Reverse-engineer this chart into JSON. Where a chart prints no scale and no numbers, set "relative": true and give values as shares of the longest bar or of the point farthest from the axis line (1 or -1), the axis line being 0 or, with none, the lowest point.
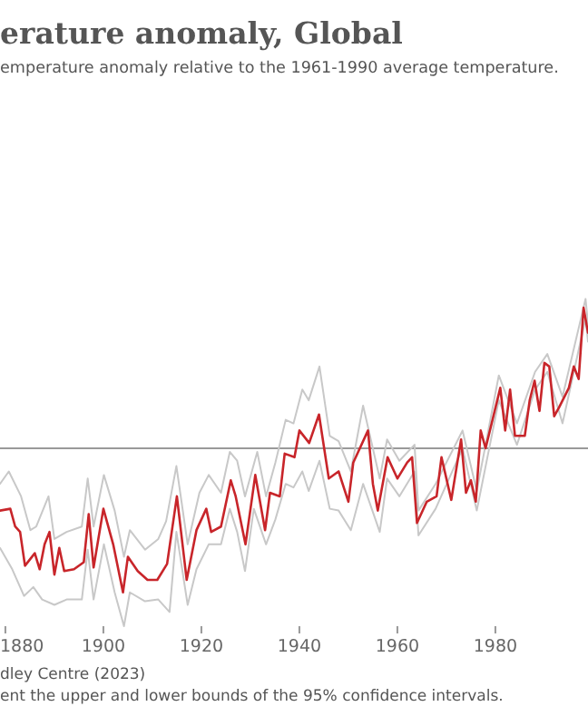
{
  "chart_data": {
    "type": "line",
    "title": "erature anomaly, Global",
    "subtitle": "emperature anomaly relative to the 1961-1990 average temperature.",
    "annotations": [
      "dley Centre (2023)",
      "ent the upper and lower bounds of the 95% confidence intervals."
    ],
    "relative": true,
    "tick_labels": "x",
    "xlim": [
      1878.9,
      1998.9
    ],
    "xticks": [
      1880,
      1900,
      1920,
      1940,
      1960,
      1980
    ],
    "series": [
      {
        "color": "#c8c8c8",
        "x": [
          1878.9,
          1880.7,
          1883.2,
          1885.1,
          1886.3,
          1888.8,
          1890.0,
          1892.5,
          1895.6,
          1896.8,
          1898.0,
          1900.1,
          1902.3,
          1904.2,
          1905.4,
          1908.5,
          1911.2,
          1912.8,
          1914.9,
          1917.2,
          1919.6,
          1921.5,
          1924.0,
          1925.8,
          1927.3,
          1928.9,
          1931.4,
          1933.2,
          1935.1,
          1937.2,
          1938.8,
          1940.6,
          1941.9,
          1944.1,
          1946.2,
          1948.0,
          1950.5,
          1953.0,
          1956.4,
          1957.9,
          1960.4,
          1963.5,
          1964.3,
          1967.8,
          1973.3,
          1976.2,
          1980.7,
          1984.4,
          1988.1,
          1990.6,
          1993.7,
          1998.4,
          1998.9
        ],
        "values": [
          -0.2,
          -0.13,
          -0.27,
          -0.46,
          -0.44,
          -0.27,
          -0.51,
          -0.47,
          -0.44,
          -0.17,
          -0.44,
          -0.15,
          -0.35,
          -0.61,
          -0.46,
          -0.57,
          -0.51,
          -0.41,
          -0.1,
          -0.54,
          -0.25,
          -0.15,
          -0.25,
          -0.02,
          -0.07,
          -0.27,
          -0.02,
          -0.27,
          -0.08,
          0.16,
          0.14,
          0.33,
          0.27,
          0.46,
          0.07,
          0.04,
          -0.13,
          0.24,
          -0.17,
          0.05,
          -0.07,
          0.02,
          -0.35,
          -0.2,
          0.1,
          -0.24,
          0.41,
          0.14,
          0.43,
          0.53,
          0.29,
          0.84,
          0.7
        ]
      },
      {
        "color": "#c8c8c8",
        "x": [
          1878.9,
          1881.4,
          1883.8,
          1885.7,
          1887.5,
          1890.0,
          1892.5,
          1895.6,
          1896.8,
          1898.0,
          1900.1,
          1902.3,
          1904.2,
          1905.4,
          1908.5,
          1911.2,
          1913.5,
          1914.9,
          1917.2,
          1919.0,
          1921.5,
          1924.0,
          1925.8,
          1927.3,
          1928.9,
          1930.7,
          1933.2,
          1935.1,
          1937.2,
          1938.8,
          1940.6,
          1941.9,
          1944.1,
          1946.2,
          1948.0,
          1950.5,
          1953.0,
          1956.4,
          1957.9,
          1960.4,
          1963.5,
          1964.3,
          1967.8,
          1973.3,
          1976.2,
          1980.7,
          1984.4,
          1988.1,
          1990.6,
          1993.7,
          1998.4,
          1998.9
        ],
        "values": [
          -0.56,
          -0.68,
          -0.83,
          -0.78,
          -0.85,
          -0.88,
          -0.85,
          -0.85,
          -0.57,
          -0.85,
          -0.54,
          -0.81,
          -1.0,
          -0.81,
          -0.86,
          -0.85,
          -0.92,
          -0.47,
          -0.88,
          -0.68,
          -0.54,
          -0.54,
          -0.34,
          -0.47,
          -0.69,
          -0.34,
          -0.54,
          -0.4,
          -0.2,
          -0.22,
          -0.13,
          -0.24,
          -0.07,
          -0.34,
          -0.35,
          -0.46,
          -0.2,
          -0.47,
          -0.17,
          -0.27,
          -0.13,
          -0.49,
          -0.34,
          0.0,
          -0.35,
          0.27,
          0.02,
          0.33,
          0.43,
          0.14,
          0.73,
          0.6
        ]
      },
      {
        "color": "#c8252a",
        "x": [
          1878.9,
          1881,
          1882,
          1883,
          1884,
          1886,
          1887,
          1888,
          1889,
          1890,
          1891,
          1892,
          1894,
          1896,
          1897,
          1898,
          1900,
          1902,
          1904,
          1905,
          1907,
          1909,
          1911,
          1913,
          1915,
          1917,
          1919,
          1921,
          1922,
          1924,
          1926,
          1927,
          1929,
          1931,
          1933,
          1934,
          1936,
          1937,
          1939,
          1940,
          1942,
          1944,
          1946,
          1948,
          1950,
          1951,
          1954,
          1955,
          1956,
          1958,
          1960,
          1962,
          1963,
          1964,
          1966,
          1968,
          1969,
          1971,
          1973,
          1974,
          1975,
          1976,
          1977,
          1978,
          1981,
          1982,
          1983,
          1984,
          1986,
          1987,
          1988,
          1989,
          1990,
          1991,
          1992,
          1993,
          1995,
          1996,
          1997,
          1998,
          1998.9
        ],
        "values": [
          -0.35,
          -0.34,
          -0.44,
          -0.47,
          -0.66,
          -0.59,
          -0.68,
          -0.54,
          -0.47,
          -0.71,
          -0.56,
          -0.69,
          -0.68,
          -0.64,
          -0.37,
          -0.67,
          -0.34,
          -0.54,
          -0.81,
          -0.61,
          -0.69,
          -0.74,
          -0.74,
          -0.65,
          -0.27,
          -0.74,
          -0.46,
          -0.34,
          -0.47,
          -0.44,
          -0.18,
          -0.27,
          -0.54,
          -0.15,
          -0.46,
          -0.25,
          -0.27,
          -0.03,
          -0.05,
          0.1,
          0.03,
          0.19,
          -0.17,
          -0.13,
          -0.3,
          -0.08,
          0.1,
          -0.2,
          -0.35,
          -0.05,
          -0.17,
          -0.08,
          -0.05,
          -0.42,
          -0.3,
          -0.27,
          -0.05,
          -0.29,
          0.05,
          -0.25,
          -0.18,
          -0.3,
          0.1,
          0.0,
          0.34,
          0.1,
          0.33,
          0.07,
          0.07,
          0.27,
          0.38,
          0.21,
          0.48,
          0.46,
          0.18,
          0.23,
          0.34,
          0.46,
          0.39,
          0.79,
          0.65
        ]
      }
    ]
  }
}
